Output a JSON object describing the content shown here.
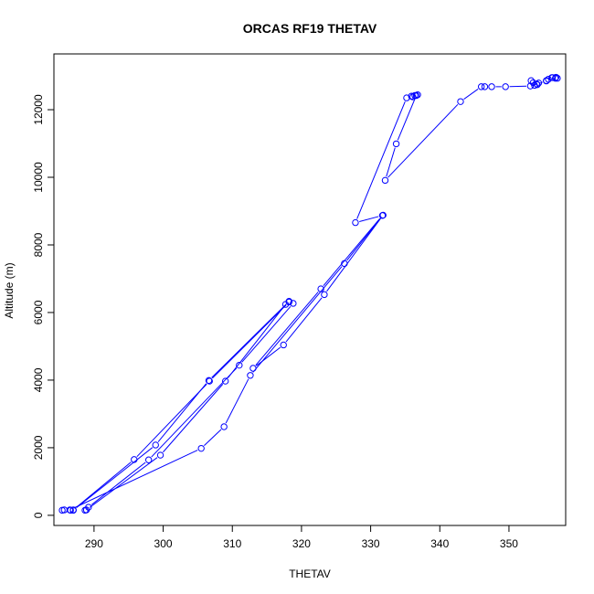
{
  "chart_data": {
    "type": "line",
    "title": "ORCAS RF19 THETAV",
    "xlabel": "THETAV",
    "ylabel": "Altitude (m)",
    "xlim": [
      284.2,
      358.2
    ],
    "ylim": [
      -300,
      13650
    ],
    "x_ticks": [
      290,
      300,
      310,
      320,
      330,
      340,
      350
    ],
    "y_ticks": [
      0,
      2000,
      4000,
      6000,
      8000,
      10000,
      12000
    ],
    "grid": false,
    "legend": "none",
    "series_color": "#0000ff",
    "series": [
      {
        "x": [
          285.4,
          285.7,
          286.6,
          287.0,
          295.8,
          306.7,
          318.2,
          317.7,
          309.0,
          299.6,
          288.9,
          288.7,
          289.2,
          297.9,
          311.0,
          318.8,
          318.2,
          306.6,
          298.9,
          287.0,
          286.5,
          305.5,
          308.8,
          312.6,
          326.2,
          331.8,
          323.3,
          317.4,
          313.0,
          322.8,
          331.7,
          327.8,
          335.2,
          335.9,
          336.1,
          336.4,
          336.8,
          336.6,
          333.7,
          332.1,
          343.0,
          346.0,
          346.5,
          347.5,
          349.5,
          353.1,
          353.7,
          354.0,
          355.4,
          355.7,
          356.3,
          356.8,
          357.0,
          356.7,
          356.2,
          355.4,
          354.3,
          354.1,
          353.5,
          353.2
        ],
        "y": [
          150,
          160,
          150,
          160,
          1650,
          3970,
          6310,
          6240,
          3970,
          1780,
          160,
          150,
          240,
          1640,
          4440,
          6270,
          6330,
          3990,
          2080,
          150,
          160,
          1980,
          2620,
          4140,
          7450,
          8880,
          6530,
          5040,
          4350,
          6700,
          8870,
          8660,
          12350,
          12400,
          12380,
          12420,
          12440,
          12420,
          10990,
          9910,
          12240,
          12680,
          12680,
          12680,
          12680,
          12700,
          12720,
          12760,
          12850,
          12900,
          12950,
          12960,
          12930,
          12930,
          12950,
          12860,
          12790,
          12740,
          12800,
          12860
        ]
      }
    ]
  }
}
